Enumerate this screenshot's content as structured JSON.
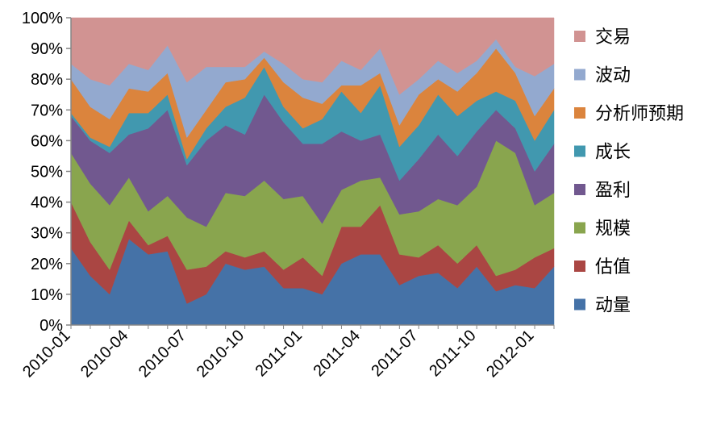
{
  "chart_data": {
    "type": "area",
    "stacked": "percent",
    "title": "",
    "xlabel": "",
    "ylabel": "",
    "ylim": [
      0,
      100
    ],
    "y_ticks": [
      "0%",
      "10%",
      "20%",
      "30%",
      "40%",
      "50%",
      "60%",
      "70%",
      "80%",
      "90%",
      "100%"
    ],
    "x": [
      "2010-01",
      "2010-02",
      "2010-03",
      "2010-04",
      "2010-05",
      "2010-06",
      "2010-07",
      "2010-08",
      "2010-09",
      "2010-10",
      "2010-11",
      "2010-12",
      "2011-01",
      "2011-02",
      "2011-03",
      "2011-04",
      "2011-05",
      "2011-06",
      "2011-07",
      "2011-08",
      "2011-09",
      "2011-10",
      "2011-11",
      "2011-12",
      "2012-01",
      "2012-02"
    ],
    "x_tick_labels": [
      "2010-01",
      "2010-04",
      "2010-07",
      "2010-10",
      "2011-01",
      "2011-04",
      "2011-07",
      "2011-10",
      "2012-01"
    ],
    "legend_position": "right",
    "grid": false,
    "series": [
      {
        "name": "动量",
        "color": "#4572A7",
        "values": [
          25,
          16,
          10,
          28,
          23,
          24,
          7,
          10,
          20,
          18,
          19,
          12,
          12,
          10,
          20,
          23,
          23,
          13,
          16,
          17,
          12,
          19,
          11,
          13,
          12,
          19
        ]
      },
      {
        "name": "估值",
        "color": "#AA4643",
        "values": [
          15,
          11,
          8,
          6,
          3,
          5,
          11,
          9,
          4,
          4,
          5,
          6,
          10,
          6,
          12,
          9,
          16,
          10,
          6,
          9,
          8,
          7,
          5,
          5,
          10,
          6
        ]
      },
      {
        "name": "规模",
        "color": "#89A54E",
        "values": [
          16,
          19,
          21,
          14,
          11,
          13,
          17,
          13,
          19,
          20,
          23,
          23,
          20,
          17,
          12,
          15,
          9,
          13,
          15,
          15,
          19,
          19,
          44,
          38,
          17,
          18
        ]
      },
      {
        "name": "盈利",
        "color": "#71588F",
        "values": [
          12,
          14,
          17,
          14,
          27,
          28,
          17,
          28,
          22,
          20,
          28,
          25,
          17,
          26,
          19,
          13,
          14,
          11,
          17,
          21,
          16,
          18,
          10,
          8,
          11,
          16
        ]
      },
      {
        "name": "成长",
        "color": "#4198AF",
        "values": [
          1,
          1,
          2,
          7,
          5,
          5,
          2,
          4,
          6,
          12,
          9,
          5,
          5,
          8,
          13,
          9,
          16,
          11,
          11,
          13,
          13,
          10,
          6,
          9,
          10,
          11
        ]
      },
      {
        "name": "分析师预期",
        "color": "#DB843D",
        "values": [
          11,
          10,
          9,
          8,
          7,
          7,
          7,
          6,
          8,
          6,
          3,
          8,
          10,
          5,
          2,
          9,
          4,
          7,
          10,
          5,
          8,
          9,
          14,
          9,
          8,
          7
        ]
      },
      {
        "name": "波动",
        "color": "#93A9CF",
        "values": [
          5,
          9,
          11,
          8,
          7,
          9,
          18,
          14,
          5,
          4,
          2,
          6,
          6,
          7,
          8,
          5,
          8,
          10,
          5,
          6,
          6,
          4,
          3,
          2,
          13,
          8
        ]
      },
      {
        "name": "交易",
        "color": "#D19392",
        "values": [
          15,
          20,
          22,
          15,
          17,
          9,
          21,
          16,
          16,
          16,
          11,
          15,
          20,
          21,
          14,
          17,
          10,
          25,
          20,
          14,
          18,
          14,
          7,
          16,
          19,
          15
        ]
      }
    ]
  }
}
